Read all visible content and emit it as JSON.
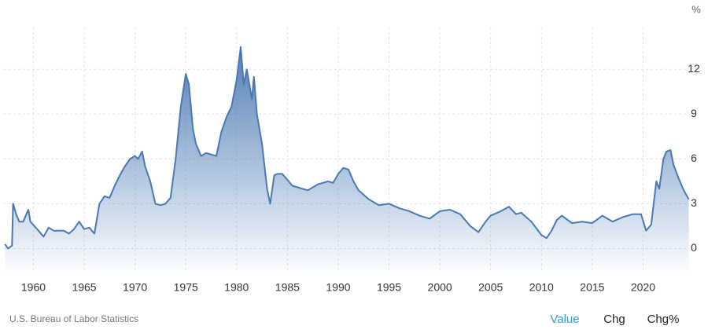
{
  "chart_data": {
    "type": "area",
    "y_unit": "%",
    "source": "U.S. Bureau of Labor Statistics",
    "view_options": [
      "Value",
      "Chg",
      "Chg%"
    ],
    "color": "#4a78b4",
    "grid": true,
    "xlim": [
      1957.1,
      2024.3
    ],
    "xticks": [
      1960,
      1965,
      1970,
      1975,
      1980,
      1985,
      1990,
      1995,
      2000,
      2005,
      2010,
      2015,
      2020
    ],
    "ylim": [
      -1.5,
      14.8
    ],
    "yticks": [
      0,
      3,
      6,
      9,
      12
    ],
    "x": [
      1957.2,
      1957.5,
      1957.9,
      1958.0,
      1958.3,
      1958.6,
      1959.0,
      1959.5,
      1959.7,
      1960.5,
      1961.0,
      1961.5,
      1962.0,
      1963.0,
      1963.5,
      1964.0,
      1964.5,
      1965.0,
      1965.5,
      1966.0,
      1966.5,
      1967.0,
      1967.5,
      1968.0,
      1968.5,
      1969.0,
      1969.5,
      1970.0,
      1970.3,
      1970.7,
      1971.0,
      1971.5,
      1972.0,
      1972.5,
      1973.0,
      1973.5,
      1974.0,
      1974.5,
      1975.0,
      1975.3,
      1975.7,
      1976.0,
      1976.5,
      1977.0,
      1977.5,
      1978.0,
      1978.5,
      1979.0,
      1979.5,
      1980.0,
      1980.4,
      1980.7,
      1981.0,
      1981.5,
      1981.7,
      1982.0,
      1982.5,
      1983.0,
      1983.3,
      1983.7,
      1984.0,
      1984.5,
      1985.0,
      1985.5,
      1986.0,
      1986.5,
      1987.0,
      1988.0,
      1989.0,
      1989.5,
      1990.0,
      1990.5,
      1991.0,
      1991.5,
      1992.0,
      1993.0,
      1994.0,
      1995.0,
      1996.0,
      1997.0,
      1998.0,
      1999.0,
      2000.0,
      2001.0,
      2002.0,
      2003.0,
      2003.8,
      2004.5,
      2005.0,
      2006.0,
      2006.8,
      2007.5,
      2008.0,
      2009.0,
      2010.0,
      2010.5,
      2011.0,
      2011.5,
      2012.0,
      2013.0,
      2014.0,
      2015.0,
      2016.0,
      2017.0,
      2018.0,
      2019.0,
      2019.8,
      2020.3,
      2020.8,
      2021.3,
      2021.6,
      2022.0,
      2022.3,
      2022.7,
      2023.0,
      2023.5,
      2024.0,
      2024.5
    ],
    "values": [
      0.3,
      0.0,
      0.2,
      3.0,
      2.3,
      1.8,
      1.8,
      2.6,
      1.8,
      1.2,
      0.8,
      1.4,
      1.2,
      1.2,
      1.0,
      1.3,
      1.8,
      1.3,
      1.4,
      1.0,
      3.0,
      3.5,
      3.4,
      4.2,
      4.9,
      5.5,
      6.0,
      6.2,
      6.0,
      6.5,
      5.5,
      4.5,
      3.0,
      2.9,
      3.0,
      3.4,
      6.0,
      9.5,
      11.7,
      11.0,
      8.0,
      7.0,
      6.2,
      6.4,
      6.3,
      6.2,
      7.8,
      8.8,
      9.5,
      11.3,
      13.5,
      11.0,
      12.0,
      10.0,
      11.5,
      9.0,
      7.0,
      4.0,
      3.0,
      4.9,
      5.0,
      5.0,
      4.6,
      4.2,
      4.1,
      4.0,
      3.9,
      4.3,
      4.5,
      4.4,
      5.0,
      5.4,
      5.3,
      4.5,
      3.9,
      3.3,
      2.9,
      3.0,
      2.7,
      2.5,
      2.2,
      2.0,
      2.5,
      2.6,
      2.3,
      1.5,
      1.1,
      1.8,
      2.2,
      2.5,
      2.8,
      2.3,
      2.4,
      1.8,
      0.9,
      0.7,
      1.2,
      1.9,
      2.2,
      1.7,
      1.8,
      1.7,
      2.2,
      1.8,
      2.1,
      2.3,
      2.3,
      1.2,
      1.6,
      4.5,
      4.0,
      6.0,
      6.5,
      6.6,
      5.6,
      4.7,
      3.9,
      3.3
    ]
  }
}
